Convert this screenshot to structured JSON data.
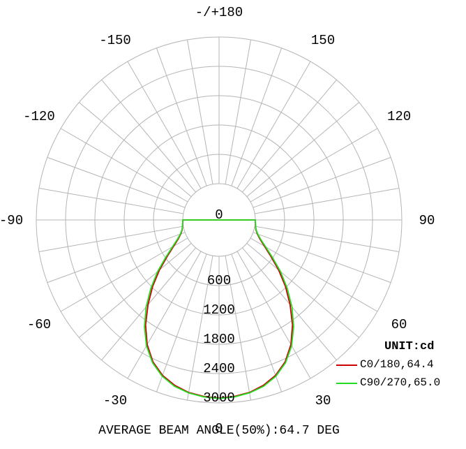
{
  "chart_data": {
    "type": "polar",
    "unit_label": "UNIT:cd",
    "footer": "AVERAGE BEAM ANGLE(50%):64.7 DEG",
    "angle_labels": [
      {
        "deg": 0,
        "text": "0"
      },
      {
        "deg": 30,
        "text": "30"
      },
      {
        "deg": 60,
        "text": "60"
      },
      {
        "deg": 90,
        "text": "90"
      },
      {
        "deg": 120,
        "text": "120"
      },
      {
        "deg": 150,
        "text": "150"
      },
      {
        "deg": 180,
        "text": "-/+180"
      },
      {
        "deg": -30,
        "text": "-30"
      },
      {
        "deg": -60,
        "text": "-60"
      },
      {
        "deg": -90,
        "text": "-90"
      },
      {
        "deg": -120,
        "text": "-120"
      },
      {
        "deg": -150,
        "text": "-150"
      }
    ],
    "radial_ticks": [
      0,
      600,
      1200,
      1800,
      2400,
      3000
    ],
    "radial_max": 3000,
    "spoke_step_deg": 10,
    "series": [
      {
        "name": "C0/180,64.4",
        "color": "#cc0000",
        "points": [
          [
            -90,
            0
          ],
          [
            -80,
            15
          ],
          [
            -75,
            40
          ],
          [
            -70,
            90
          ],
          [
            -65,
            180
          ],
          [
            -60,
            330
          ],
          [
            -55,
            550
          ],
          [
            -50,
            850
          ],
          [
            -45,
            1180
          ],
          [
            -40,
            1520
          ],
          [
            -35,
            1880
          ],
          [
            -30,
            2200
          ],
          [
            -25,
            2460
          ],
          [
            -20,
            2640
          ],
          [
            -15,
            2760
          ],
          [
            -10,
            2840
          ],
          [
            -5,
            2880
          ],
          [
            0,
            2900
          ],
          [
            5,
            2880
          ],
          [
            10,
            2840
          ],
          [
            15,
            2760
          ],
          [
            20,
            2640
          ],
          [
            25,
            2460
          ],
          [
            30,
            2200
          ],
          [
            35,
            1880
          ],
          [
            40,
            1520
          ],
          [
            45,
            1180
          ],
          [
            50,
            850
          ],
          [
            55,
            550
          ],
          [
            60,
            330
          ],
          [
            65,
            180
          ],
          [
            70,
            90
          ],
          [
            75,
            40
          ],
          [
            80,
            15
          ],
          [
            90,
            0
          ]
        ]
      },
      {
        "name": "C90/270,65.0",
        "color": "#22dd22",
        "points": [
          [
            -90,
            0
          ],
          [
            -80,
            18
          ],
          [
            -75,
            45
          ],
          [
            -70,
            100
          ],
          [
            -65,
            200
          ],
          [
            -60,
            360
          ],
          [
            -55,
            590
          ],
          [
            -50,
            900
          ],
          [
            -45,
            1230
          ],
          [
            -40,
            1580
          ],
          [
            -35,
            1920
          ],
          [
            -30,
            2230
          ],
          [
            -25,
            2480
          ],
          [
            -20,
            2660
          ],
          [
            -15,
            2780
          ],
          [
            -10,
            2850
          ],
          [
            -5,
            2890
          ],
          [
            0,
            2910
          ],
          [
            5,
            2890
          ],
          [
            10,
            2850
          ],
          [
            15,
            2780
          ],
          [
            20,
            2660
          ],
          [
            25,
            2480
          ],
          [
            30,
            2230
          ],
          [
            35,
            1920
          ],
          [
            40,
            1580
          ],
          [
            45,
            1230
          ],
          [
            50,
            900
          ],
          [
            55,
            590
          ],
          [
            60,
            360
          ],
          [
            65,
            200
          ],
          [
            70,
            100
          ],
          [
            75,
            45
          ],
          [
            80,
            18
          ],
          [
            90,
            0
          ]
        ]
      }
    ]
  }
}
